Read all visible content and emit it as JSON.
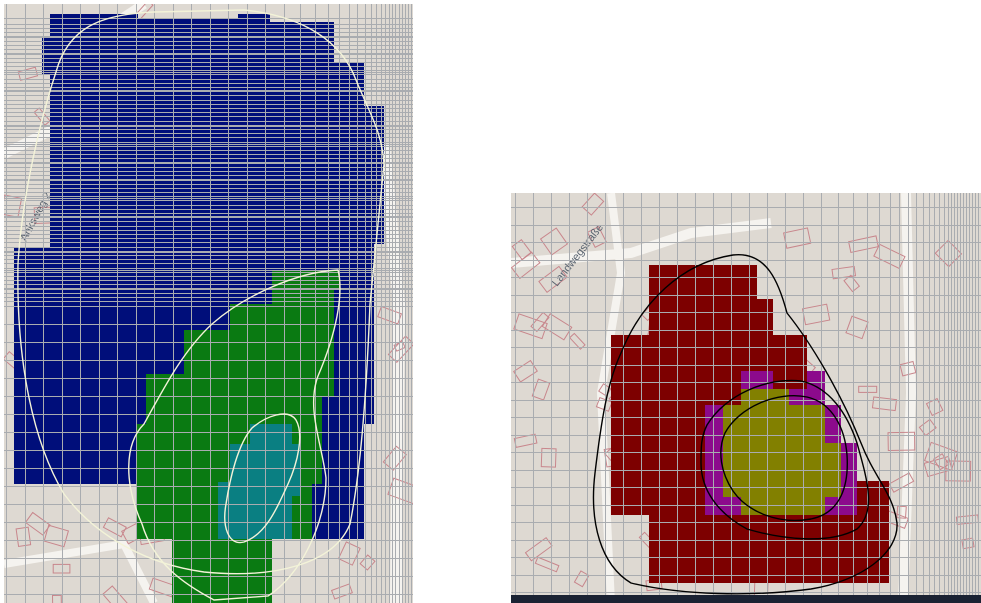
{
  "colors": {
    "map_background": "#ded9d2",
    "building_outline": "#c8868c",
    "road": "#f5f3ef",
    "grid_line": "#a9acb0",
    "left_outer_zone": "#000e7a",
    "left_middle_zone": "#0a7a12",
    "left_inner_zone": "#0a7f82",
    "left_contour": "#f3f3d8",
    "right_outer_zone": "#7d0000",
    "right_middle_zone": "#8c0a8c",
    "right_inner_zone": "#828000",
    "right_contour": "#000000"
  },
  "map_left": {
    "street_label": "Anksweg 2",
    "zones": [
      "outer",
      "middle",
      "inner"
    ]
  },
  "map_right": {
    "street_label": "Landwegstraße",
    "zones": [
      "outer",
      "middle",
      "inner"
    ]
  }
}
